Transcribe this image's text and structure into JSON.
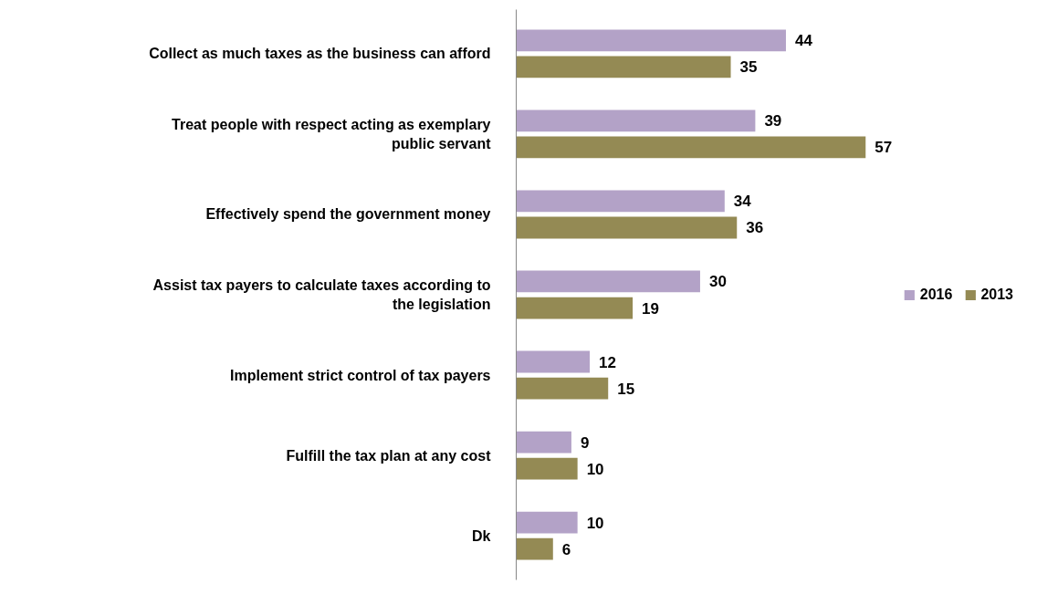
{
  "chart_data": {
    "type": "bar",
    "orientation": "horizontal",
    "categories": [
      "Collect as much taxes as the business can afford",
      "Treat people with respect acting as exemplary public servant",
      "Effectively spend the government money",
      "Assist tax payers to calculate taxes according to the legislation",
      "Implement strict control of tax payers",
      "Fulfill the tax plan at any cost",
      "Dk"
    ],
    "series": [
      {
        "name": "2016",
        "color": "#b3a2c7",
        "values": [
          44,
          39,
          34,
          30,
          12,
          9,
          10
        ]
      },
      {
        "name": "2013",
        "color": "#948a54",
        "values": [
          35,
          57,
          36,
          19,
          15,
          10,
          6
        ]
      }
    ],
    "data_labels": true,
    "legend": "right",
    "grid": false
  }
}
